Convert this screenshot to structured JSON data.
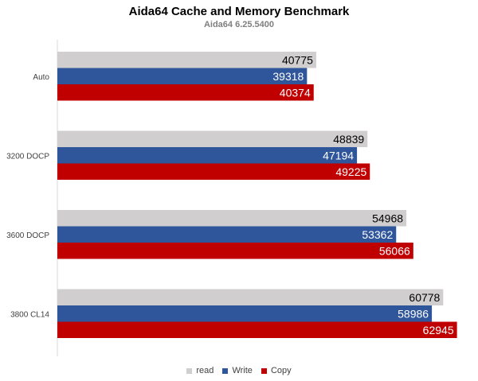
{
  "chart_data": {
    "type": "bar",
    "orientation": "horizontal",
    "title": "Aida64 Cache and Memory Benchmark",
    "subtitle": "Aida64 6.25.5400",
    "categories": [
      "Auto",
      "3200 DOCP",
      "3600 DOCP",
      "3800 CL14"
    ],
    "series": [
      {
        "name": "read",
        "color": "#d0cece",
        "label_color": "#000000",
        "values": [
          40775,
          48839,
          54968,
          60778
        ]
      },
      {
        "name": "Write",
        "color": "#2f559b",
        "label_color": "#ffffff",
        "values": [
          39318,
          47194,
          53362,
          58986
        ]
      },
      {
        "name": "Copy",
        "color": "#c00000",
        "label_color": "#ffffff",
        "values": [
          40374,
          49225,
          56066,
          62945
        ]
      }
    ],
    "xlim": [
      0,
      65000
    ],
    "grid": false,
    "legend": "bottom"
  }
}
